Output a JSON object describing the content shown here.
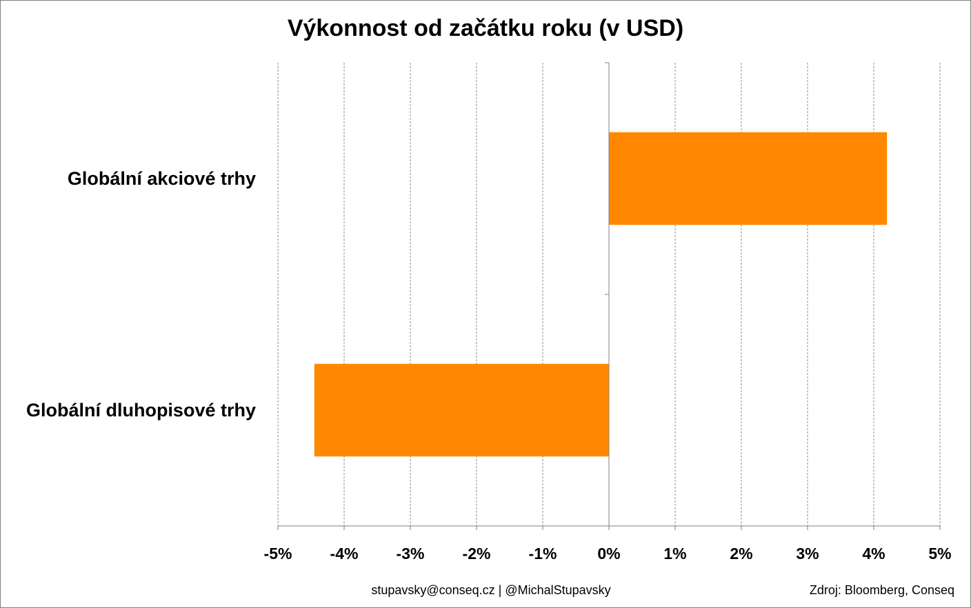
{
  "chart_data": {
    "type": "bar",
    "orientation": "horizontal",
    "title": "Výkonnost od začátku roku (v USD)",
    "categories": [
      "Globální akciové trhy",
      "Globální dluhopisové trhy"
    ],
    "values": [
      4.2,
      -4.45
    ],
    "unit": "%",
    "xlim": [
      -5,
      5
    ],
    "xticks": [
      "-5%",
      "-4%",
      "-3%",
      "-2%",
      "-1%",
      "0%",
      "1%",
      "2%",
      "3%",
      "4%",
      "5%"
    ],
    "grid": "vertical dashed",
    "legend": "none",
    "bar_color": "#ff8800"
  },
  "footer": {
    "contact": "stupavsky@conseq.cz  |  @MichalStupavsky",
    "source": "Zdroj: Bloomberg, Conseq"
  }
}
